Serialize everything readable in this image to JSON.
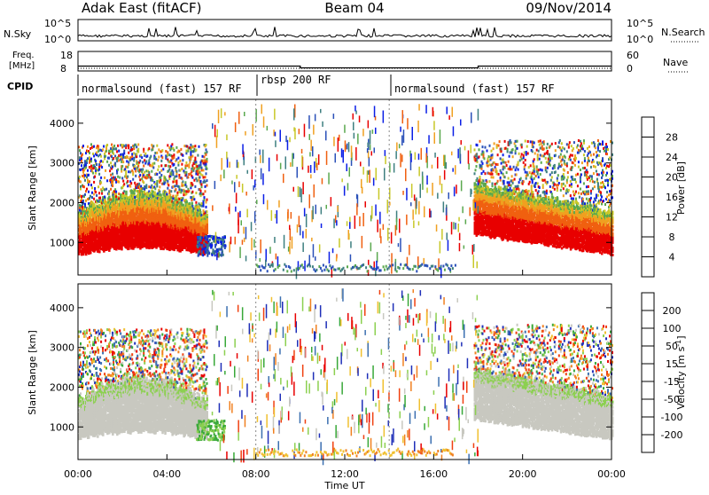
{
  "header": {
    "station": "Adak East (fitACF)",
    "beam": "Beam 04",
    "date": "09/Nov/2014"
  },
  "chart_data": [
    {
      "type": "line",
      "panel": "noise",
      "left_label": "N.Sky",
      "right_label": "N.Search",
      "left_ticks": [
        "10^5",
        "10^0"
      ],
      "right_ticks": [
        "10^5",
        "10^0"
      ]
    },
    {
      "type": "line",
      "panel": "frequency-nave",
      "left_label_line1": "Freq.",
      "left_label_line2": "[MHz]",
      "right_label": "Nave",
      "left_ticks": [
        18,
        8
      ],
      "right_ticks": [
        60,
        0
      ],
      "freq_steps": [
        {
          "x": 0,
          "y": 10.5
        },
        {
          "x": 10,
          "y": 10.5
        },
        {
          "x": 10,
          "y": 9.6
        },
        {
          "x": 18,
          "y": 9.6
        },
        {
          "x": 18,
          "y": 10.5
        },
        {
          "x": 24,
          "y": 10.5
        }
      ],
      "freq_ylim": [
        8,
        18
      ]
    },
    {
      "type": "table",
      "panel": "cpid",
      "label": "CPID",
      "segments": [
        {
          "start": 0,
          "end": 8,
          "text": "normalsound (fast) 157 RF"
        },
        {
          "start": 8,
          "end": 14,
          "text": "rbsp 200 RF"
        },
        {
          "start": 14,
          "end": 24,
          "text": "normalsound (fast) 157 RF"
        }
      ]
    },
    {
      "type": "heatmap",
      "panel": "power",
      "ylabel": "Slant Range [km]",
      "yticks": [
        1000,
        2000,
        3000,
        4000
      ],
      "ylim": [
        180,
        4600
      ],
      "xlim": [
        0,
        24
      ],
      "colorbar_label": "Power [dB]",
      "colorbar_ticks": [
        4,
        8,
        12,
        16,
        20,
        24,
        28
      ],
      "colorbar_range": [
        0,
        32
      ],
      "colors": [
        "#0a1ee6",
        "#2a50b8",
        "#3e7f80",
        "#5aa84e",
        "#c8c828",
        "#f0a020",
        "#f06010",
        "#e80000"
      ]
    },
    {
      "type": "heatmap",
      "panel": "velocity",
      "ylabel": "Slant Range [km]",
      "yticks": [
        1000,
        2000,
        3000,
        4000
      ],
      "ylim": [
        180,
        4600
      ],
      "xlim": [
        0,
        24
      ],
      "xticks": [
        "00:00",
        "04:00",
        "08:00",
        "12:00",
        "16:00",
        "20:00",
        "00:00"
      ],
      "xlabel": "Time UT",
      "colorbar_label": "Velocity [m s^-1]",
      "colorbar_ticks": [
        "200",
        "100",
        "50",
        "15",
        "-15",
        "-50",
        "-100",
        "-200"
      ],
      "colors": [
        "#1f2fb8",
        "#3b6fb0",
        "#38a838",
        "#8cd050",
        "#c8c8c0",
        "#f0c030",
        "#f08020",
        "#f04010",
        "#e80000"
      ]
    }
  ]
}
